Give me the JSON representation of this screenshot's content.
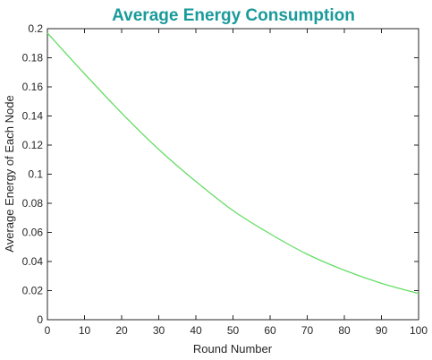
{
  "chart_data": {
    "type": "line",
    "title": "Average Energy Consumption",
    "xlabel": "Round Number",
    "ylabel": "Average Energy of Each Node",
    "xlim": [
      0,
      100
    ],
    "ylim": [
      0,
      0.2
    ],
    "xticks": [
      "0",
      "10",
      "20",
      "30",
      "40",
      "50",
      "60",
      "70",
      "80",
      "90",
      "100"
    ],
    "yticks": [
      "0",
      "0.02",
      "0.04",
      "0.06",
      "0.08",
      "0.1",
      "0.12",
      "0.14",
      "0.16",
      "0.18",
      "0.2"
    ],
    "grid": false,
    "series": [
      {
        "color": "#66dd66",
        "x": [
          0,
          10,
          20,
          30,
          40,
          50,
          60,
          70,
          80,
          90,
          100
        ],
        "y": [
          0.197,
          0.169,
          0.142,
          0.117,
          0.095,
          0.075,
          0.059,
          0.045,
          0.034,
          0.025,
          0.018
        ]
      }
    ]
  }
}
